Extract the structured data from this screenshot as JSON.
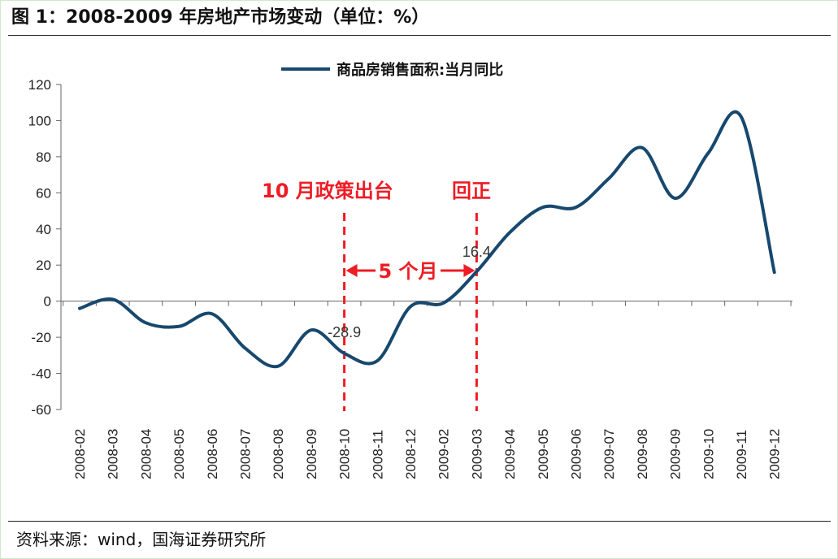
{
  "figure": {
    "title": "图 1：2008-2009 年房地产市场变动（单位：%）",
    "source": "资料来源：wind，国海证券研究所"
  },
  "colors": {
    "line": "#17486e",
    "annotation": "#ee1c25"
  },
  "chart_data": {
    "type": "line",
    "ylim": [
      -60,
      120
    ],
    "yticks": [
      120,
      100,
      80,
      60,
      40,
      20,
      0,
      -20,
      -40,
      -60
    ],
    "categories": [
      "2008-02",
      "2008-03",
      "2008-04",
      "2008-05",
      "2008-06",
      "2008-07",
      "2008-08",
      "2008-09",
      "2008-10",
      "2008-11",
      "2008-12",
      "2009-02",
      "2009-03",
      "2009-04",
      "2009-05",
      "2009-06",
      "2009-07",
      "2009-08",
      "2009-09",
      "2009-10",
      "2009-11",
      "2009-12"
    ],
    "series": [
      {
        "name": "商品房销售面积:当月同比",
        "values": [
          -4,
          1,
          -12,
          -14,
          -7,
          -26,
          -36,
          -16,
          -28.9,
          -33,
          -3,
          -1,
          16.4,
          38,
          52,
          52,
          68,
          85,
          57,
          82,
          102,
          16
        ]
      }
    ],
    "legend": "top-center",
    "grid": false,
    "annotations": {
      "point_labels": [
        {
          "category": "2008-10",
          "text": "-28.9"
        },
        {
          "category": "2009-03",
          "text": "16.4"
        }
      ],
      "vlines": [
        "2008-10",
        "2009-03"
      ],
      "policy_label": "10 月政策出台",
      "turn_label": "回正",
      "interval_label": "5 个月"
    }
  }
}
